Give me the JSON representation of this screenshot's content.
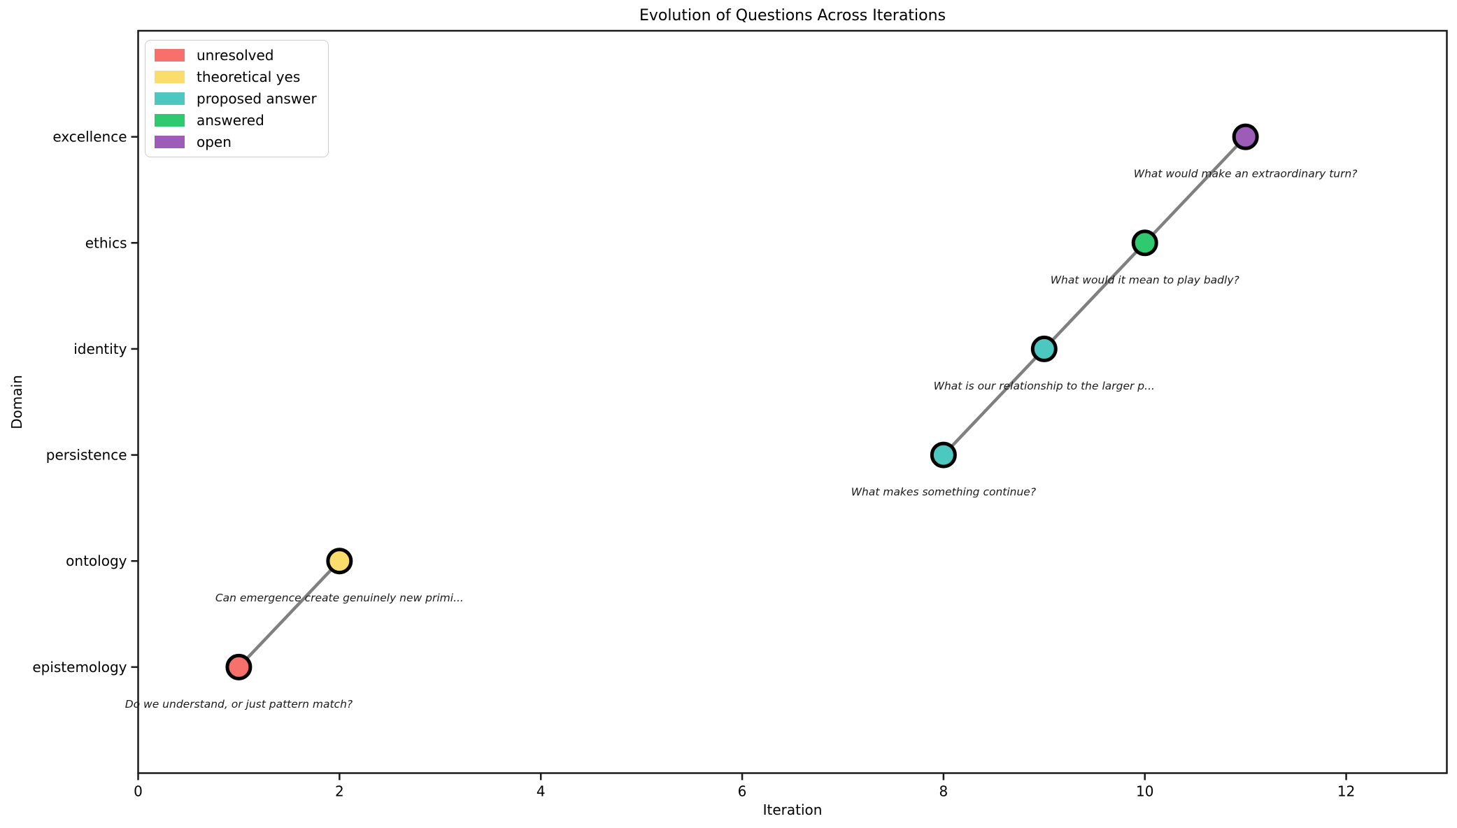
{
  "chart_data": {
    "type": "scatter",
    "title": "Evolution of Questions Across Iterations",
    "xlabel": "Iteration",
    "ylabel": "Domain",
    "xlim": [
      0,
      13
    ],
    "ylim": [
      -1,
      6
    ],
    "x_ticks": [
      0,
      2,
      4,
      6,
      8,
      10,
      12
    ],
    "categories": [
      "epistemology",
      "ontology",
      "persistence",
      "identity",
      "ethics",
      "excellence"
    ],
    "grid": false,
    "legend": {
      "position": "upper left",
      "entries": [
        {
          "label": "unresolved",
          "color": "#F8706B"
        },
        {
          "label": "theoretical yes",
          "color": "#FADD6A"
        },
        {
          "label": "proposed answer",
          "color": "#4DC8C0"
        },
        {
          "label": "answered",
          "color": "#2FC96F"
        },
        {
          "label": "open",
          "color": "#9D5CB8"
        }
      ]
    },
    "line": {
      "color": "#808080",
      "width": 4.5,
      "segments": [
        [
          0,
          1
        ],
        [
          2,
          3,
          4,
          5
        ]
      ]
    },
    "marker": {
      "edge_color": "#000000",
      "edge_width": 5,
      "radius": 16.5
    },
    "points": [
      {
        "x": 1,
        "domain": "epistemology",
        "status": "unresolved",
        "annotation": "Do we understand, or just pattern match?"
      },
      {
        "x": 2,
        "domain": "ontology",
        "status": "theoretical yes",
        "annotation": "Can emergence create genuinely new primi..."
      },
      {
        "x": 8,
        "domain": "persistence",
        "status": "proposed answer",
        "annotation": "What makes something continue?"
      },
      {
        "x": 9,
        "domain": "identity",
        "status": "proposed answer",
        "annotation": "What is our relationship to the larger p..."
      },
      {
        "x": 10,
        "domain": "ethics",
        "status": "answered",
        "annotation": "What would it mean to play badly?"
      },
      {
        "x": 11,
        "domain": "excellence",
        "status": "open",
        "annotation": "What would make an extraordinary turn?"
      }
    ],
    "annotation_style": {
      "color": "#1a1a1a",
      "italic": true
    }
  }
}
